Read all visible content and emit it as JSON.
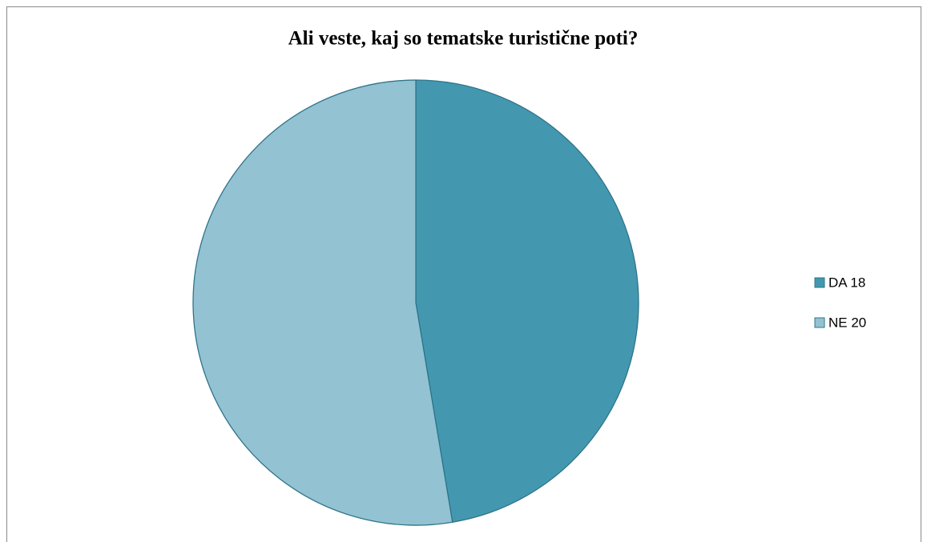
{
  "chart_data": {
    "type": "pie",
    "title": "Ali veste, kaj so tematske turistične poti?",
    "categories": [
      "DA 18",
      "NE 20"
    ],
    "values": [
      18,
      20
    ],
    "colors": [
      "#4398b0",
      "#93c2d3"
    ],
    "legend": "right"
  }
}
